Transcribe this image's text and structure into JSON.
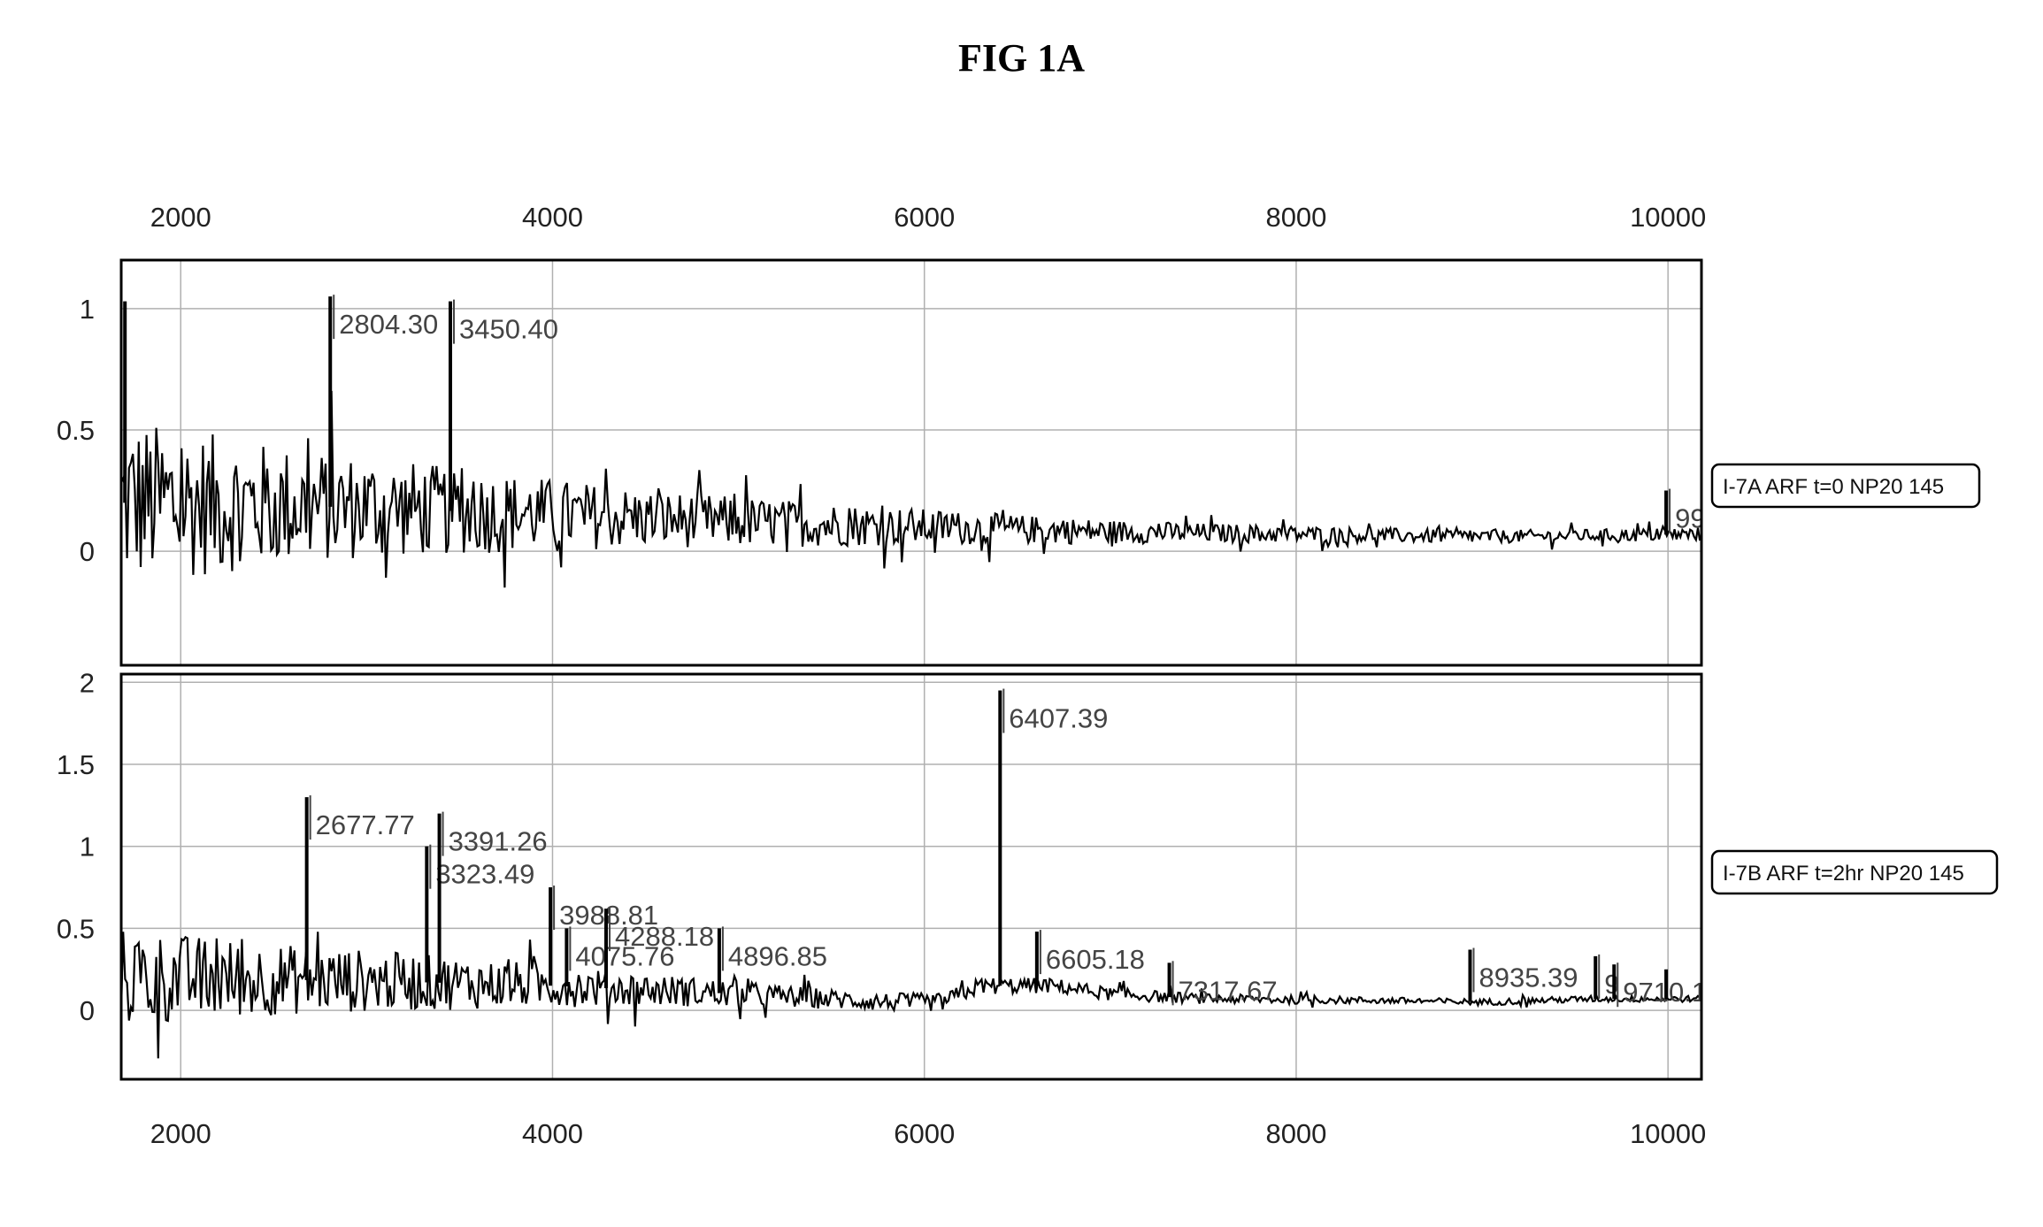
{
  "figure_title": "FIG 1A",
  "colors": {
    "trace": "#000000",
    "grid": "#b0b0b0",
    "axis": "#000000",
    "label": "#444444"
  },
  "chart_data": [
    {
      "type": "line",
      "title": "",
      "xlabel": "",
      "ylabel": "",
      "xlim": [
        1680,
        10180
      ],
      "ylim": [
        -0.47,
        1.2
      ],
      "x_ticks": [
        2000,
        4000,
        6000,
        8000,
        10000
      ],
      "y_ticks": [
        0,
        0.5,
        1
      ],
      "x_tick_labels": [
        "2000",
        "4000",
        "6000",
        "8000",
        "10000"
      ],
      "y_tick_labels": [
        "0",
        "0.5",
        "1"
      ],
      "x_axis_position": "top",
      "grid": true,
      "legend": {
        "text": "I-7A ARF t=0 NP20 145",
        "placement": "right"
      },
      "profile": {
        "noise_points": [
          [
            1700,
            0.35
          ],
          [
            2500,
            0.25
          ],
          [
            3500,
            0.18
          ],
          [
            4500,
            0.12
          ],
          [
            5500,
            0.09
          ],
          [
            6500,
            0.06
          ],
          [
            7500,
            0.04
          ],
          [
            8500,
            0.03
          ],
          [
            9500,
            0.025
          ],
          [
            10180,
            0.03
          ]
        ],
        "baseline_points": [
          [
            1680,
            0.2
          ],
          [
            3000,
            0.18
          ],
          [
            4000,
            0.15
          ],
          [
            5000,
            0.12
          ],
          [
            6000,
            0.1
          ],
          [
            7000,
            0.08
          ],
          [
            8000,
            0.07
          ],
          [
            9000,
            0.06
          ],
          [
            10180,
            0.07
          ]
        ]
      },
      "peaks": [
        {
          "x": 1700,
          "y": 1.03,
          "label": ""
        },
        {
          "x": 2804.3,
          "y": 1.05,
          "label": "2804.30"
        },
        {
          "x": 3450.4,
          "y": 1.03,
          "label": "3450.40"
        },
        {
          "x": 9990,
          "y": 0.25,
          "label": "99"
        }
      ]
    },
    {
      "type": "line",
      "title": "",
      "xlabel": "",
      "ylabel": "",
      "xlim": [
        1680,
        10180
      ],
      "ylim": [
        -0.42,
        2.05
      ],
      "x_ticks": [
        2000,
        4000,
        6000,
        8000,
        10000
      ],
      "y_ticks": [
        0,
        0.5,
        1,
        1.5,
        2
      ],
      "x_tick_labels": [
        "2000",
        "4000",
        "6000",
        "8000",
        "10000"
      ],
      "y_tick_labels": [
        "0",
        "0.5",
        "1",
        "1.5",
        "2"
      ],
      "x_axis_position": "bottom",
      "grid": true,
      "legend": {
        "text": "I-7B ARF t=2hr NP20 145",
        "placement": "right"
      },
      "profile": {
        "noise_points": [
          [
            1700,
            0.3
          ],
          [
            2500,
            0.22
          ],
          [
            3500,
            0.16
          ],
          [
            4500,
            0.1
          ],
          [
            5500,
            0.06
          ],
          [
            6500,
            0.05
          ],
          [
            7500,
            0.03
          ],
          [
            8500,
            0.02
          ],
          [
            9500,
            0.02
          ],
          [
            10180,
            0.02
          ]
        ],
        "baseline_points": [
          [
            1680,
            0.2
          ],
          [
            3000,
            0.18
          ],
          [
            4000,
            0.15
          ],
          [
            5000,
            0.1
          ],
          [
            5800,
            0.05
          ],
          [
            6100,
            0.05
          ],
          [
            6300,
            0.15
          ],
          [
            6700,
            0.15
          ],
          [
            7000,
            0.1
          ],
          [
            7500,
            0.07
          ],
          [
            8500,
            0.06
          ],
          [
            9000,
            0.05
          ],
          [
            9600,
            0.07
          ],
          [
            10180,
            0.07
          ]
        ]
      },
      "peaks": [
        {
          "x": 2677.77,
          "y": 1.3,
          "label": "2677.77"
        },
        {
          "x": 3323.49,
          "y": 1.0,
          "label": "3323.49"
        },
        {
          "x": 3391.26,
          "y": 1.2,
          "label": "3391.26"
        },
        {
          "x": 3988.81,
          "y": 0.75,
          "label": "3988.81"
        },
        {
          "x": 4075.76,
          "y": 0.5,
          "label": "4075.76"
        },
        {
          "x": 4288.18,
          "y": 0.62,
          "label": "4288.18"
        },
        {
          "x": 4896.85,
          "y": 0.5,
          "label": "4896.85"
        },
        {
          "x": 6407.39,
          "y": 1.95,
          "label": "6407.39"
        },
        {
          "x": 6605.18,
          "y": 0.48,
          "label": "6605.18"
        },
        {
          "x": 7317.67,
          "y": 0.29,
          "label": "7317.67"
        },
        {
          "x": 8935.39,
          "y": 0.37,
          "label": "8935.39"
        },
        {
          "x": 9610,
          "y": 0.33,
          "label": "9"
        },
        {
          "x": 9710.1,
          "y": 0.28,
          "label": "9710.10"
        },
        {
          "x": 9990,
          "y": 0.25,
          "label": ""
        }
      ]
    }
  ]
}
